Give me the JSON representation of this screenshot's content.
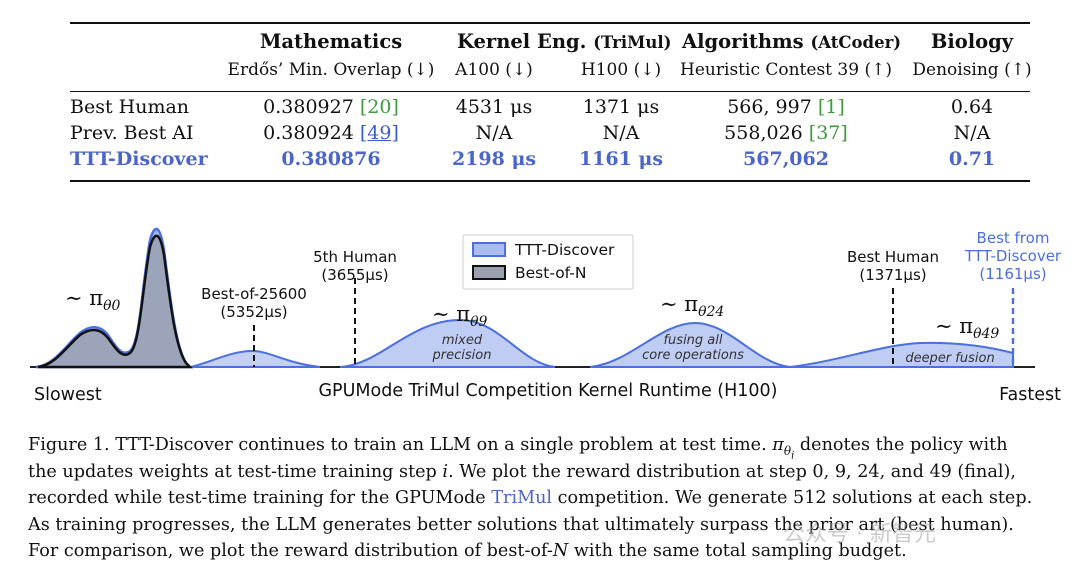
{
  "table": {
    "headers": {
      "math": "Mathematics",
      "math_sub": "Erdős’ Min. Overlap (↓)",
      "kernel": "Kernel Eng.",
      "kernel_paren": "(TriMul)",
      "kernel_sub_a100": "A100 (↓)",
      "kernel_sub_h100": "H100 (↓)",
      "algo": "Algorithms",
      "algo_paren": "(AtCoder)",
      "algo_sub": "Heuristic Contest 39 (↑)",
      "bio": "Biology",
      "bio_sub": "Denoising (↑)"
    },
    "rows": [
      {
        "method": "Best Human",
        "math": "0.380927",
        "math_cite": "[20]",
        "a100": "4531 μs",
        "h100": "1371 μs",
        "algo": "566, 997",
        "algo_cite": "[1]",
        "bio": "0.64"
      },
      {
        "method": "Prev. Best AI",
        "math": "0.380924",
        "math_cite": "[49]",
        "a100": "N/A",
        "h100": "N/A",
        "algo": "558,026",
        "algo_cite": "[37]",
        "bio": "N/A"
      },
      {
        "method": "TTT-Discover",
        "math": "0.380876",
        "math_cite": "",
        "a100": "2198 μs",
        "h100": "1161 μs",
        "algo": "567,062",
        "algo_cite": "",
        "bio": "0.71"
      }
    ]
  },
  "figure": {
    "legend": [
      "TTT-Discover",
      "Best-of-N"
    ],
    "x_axis_label": "GPUMode TriMul Competition Kernel Runtime (H100)",
    "left_end": "Slowest",
    "right_end": "Fastest",
    "policies": [
      "θ0",
      "θ9",
      "θ24",
      "θ49"
    ],
    "markers": [
      {
        "line1": "Best-of-25600",
        "line2": "(5352μs)"
      },
      {
        "line1": "5th Human",
        "line2": "(3655μs)"
      },
      {
        "line1": "Best Human",
        "line2": "(1371μs)"
      },
      {
        "line1": "Best from",
        "line2": "TTT-Discover",
        "line3": "(1161μs)"
      }
    ],
    "annotations": {
      "theta9": [
        "mixed",
        "precision"
      ],
      "theta24": [
        "fusing all",
        "core operations"
      ],
      "theta49": [
        "deeper fusion"
      ]
    },
    "colors": {
      "ttt_fill": "#aabbf0",
      "ttt_line": "#4a6fe0",
      "bon_fill": "#9aa0b0",
      "bon_line": "#111111",
      "accent": "#4b66c8"
    }
  },
  "caption": {
    "line1_a": "Figure 1. TTT-Discover continues to train an LLM on a single problem at test time. ",
    "line1_b": " denotes the policy with",
    "line2_a": "the updates weights at test-time training step ",
    "line2_b": ". We plot the reward distribution at step 0, 9, 24, and 49 (final),",
    "line3_a": "recorded while test-time training for the GPUMode ",
    "line3_link": "TriMul",
    "line3_b": " competition. We generate 512 solutions at each step.",
    "line4": "As training progresses, the LLM generates better solutions that ultimately surpass the prior art (best human).",
    "line5_a": "For comparison, we plot the reward distribution of best-of-",
    "line5_b": " with the same total sampling budget."
  },
  "watermark": "公众号 · 新智元"
}
